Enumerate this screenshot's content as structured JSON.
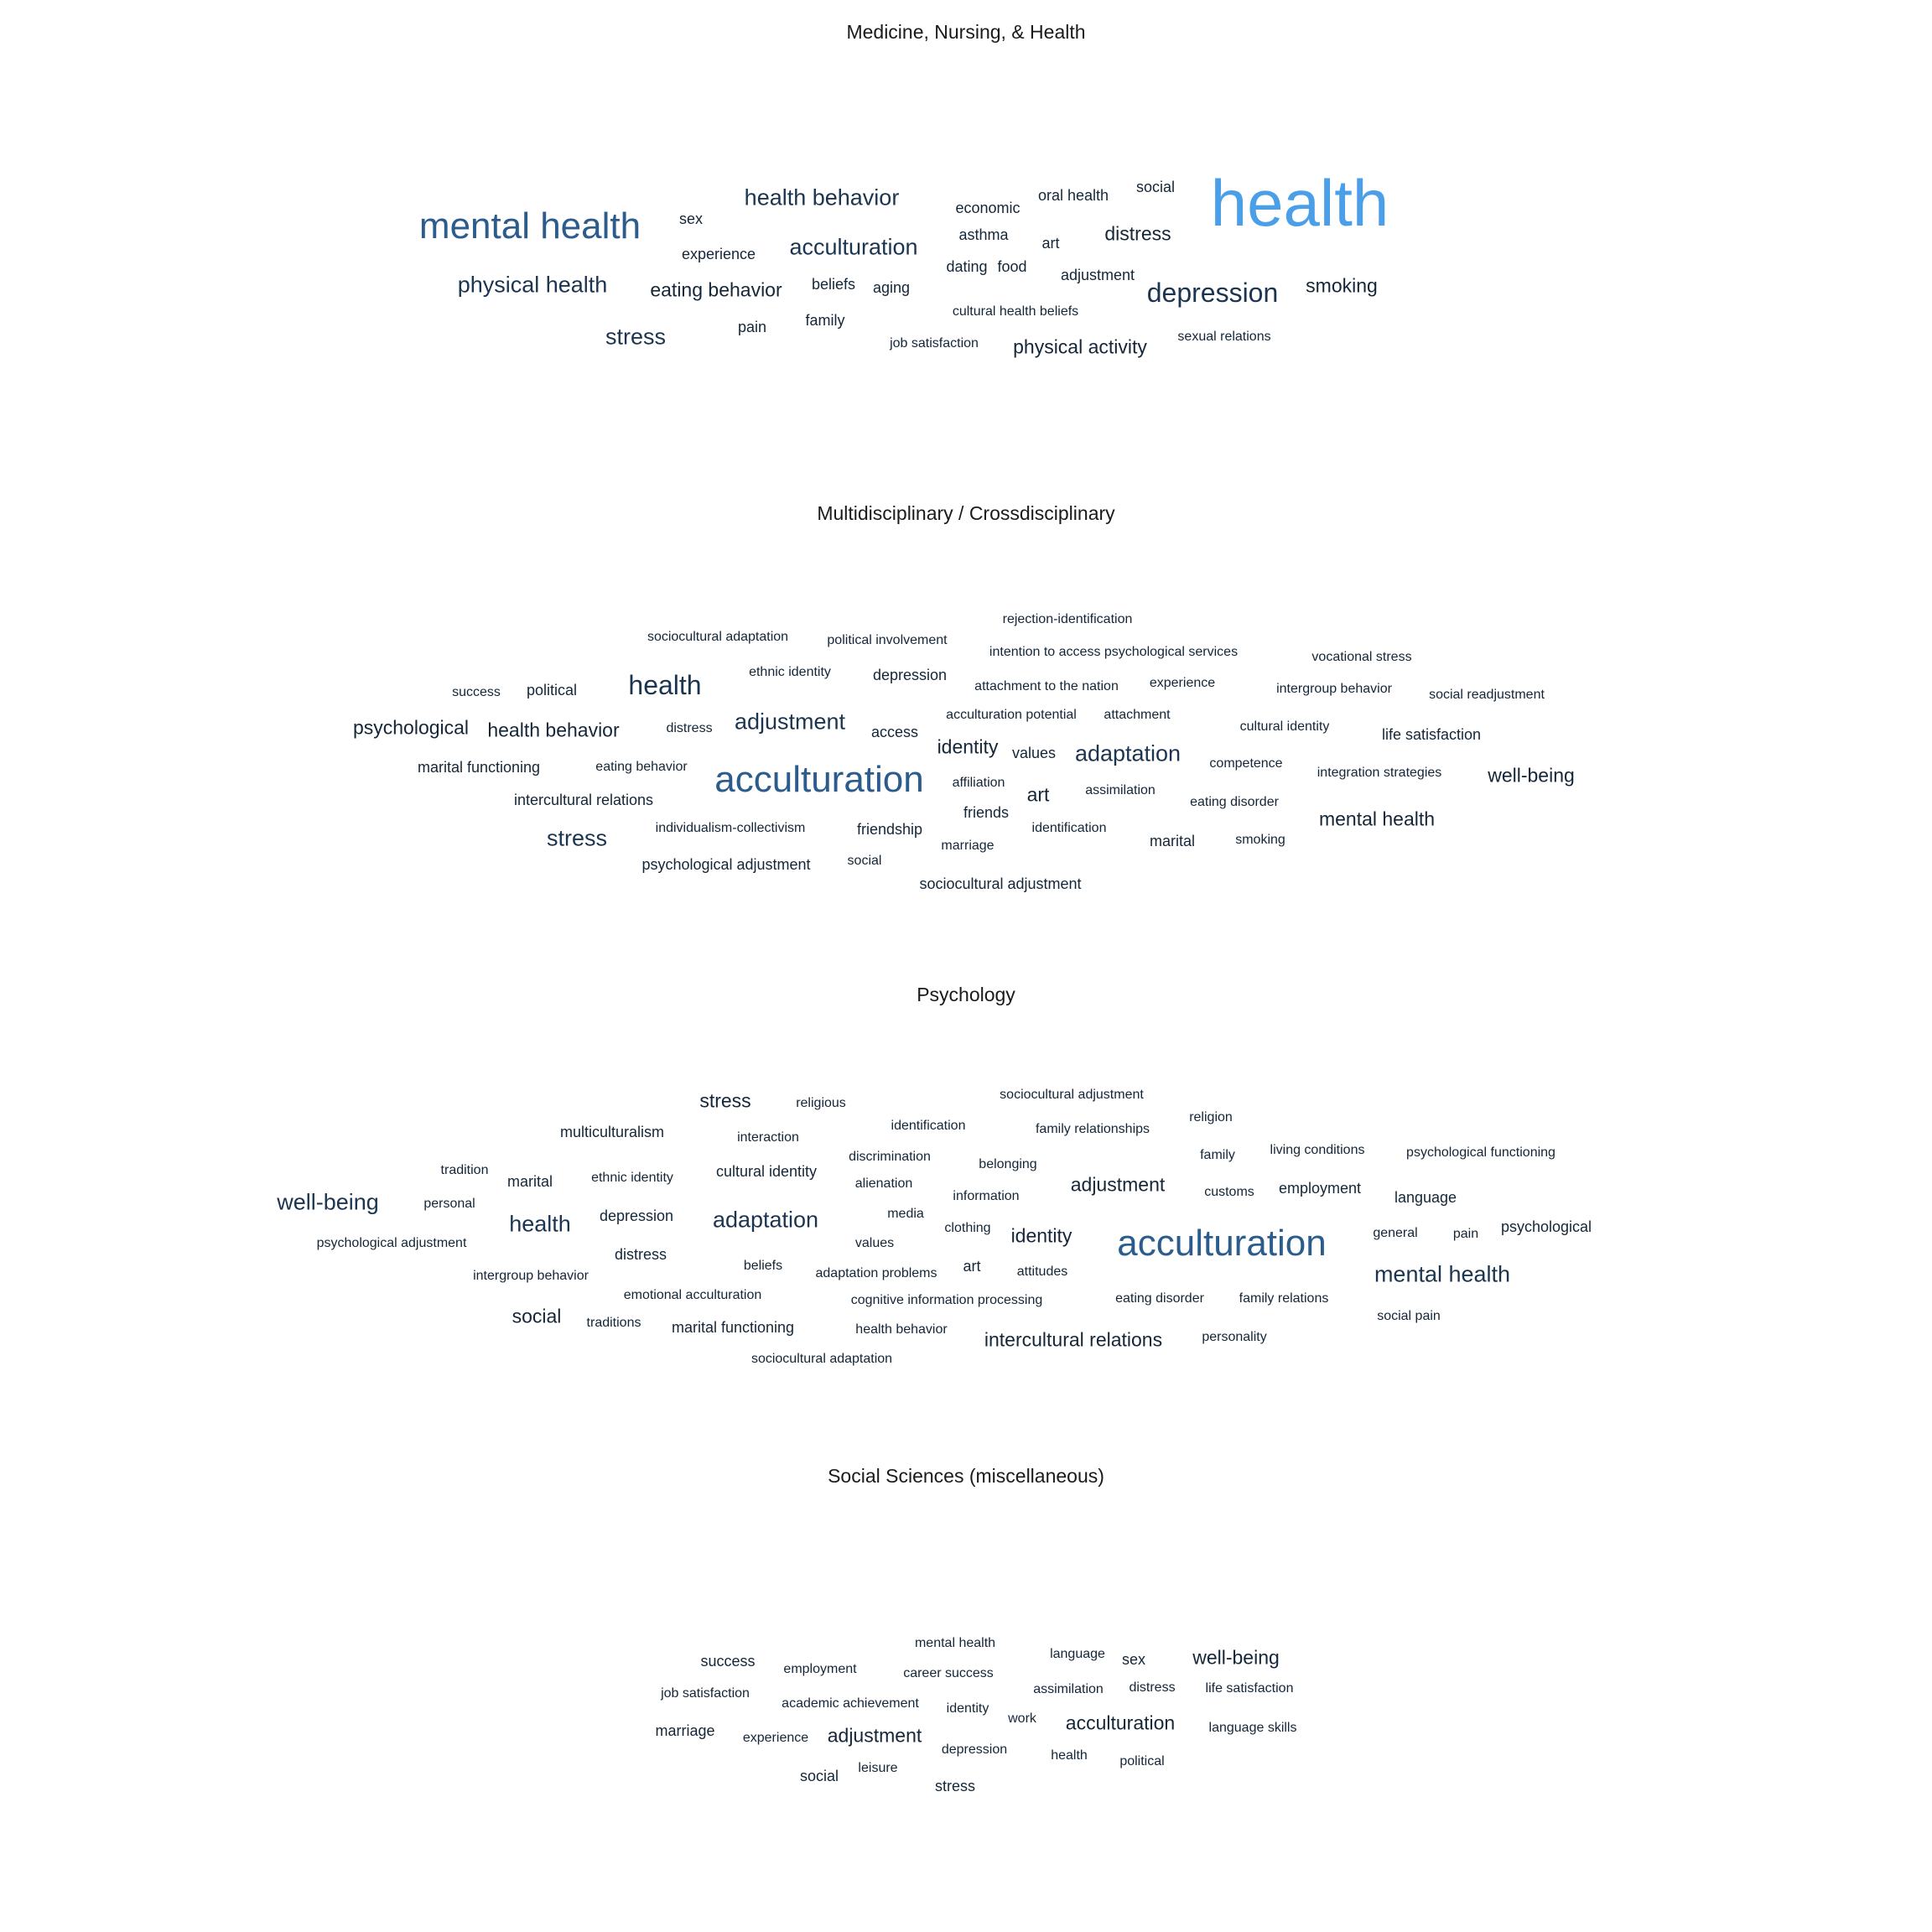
{
  "chart_data": [
    {
      "type": "wordcloud",
      "title": "Medicine, Nursing, & Health",
      "words": [
        {
          "text": "health",
          "weight": 10
        },
        {
          "text": "mental health",
          "weight": 7
        },
        {
          "text": "depression",
          "weight": 5
        },
        {
          "text": "health behavior",
          "weight": 4
        },
        {
          "text": "acculturation",
          "weight": 4
        },
        {
          "text": "physical health",
          "weight": 4
        },
        {
          "text": "stress",
          "weight": 4
        },
        {
          "text": "distress",
          "weight": 3
        },
        {
          "text": "eating behavior",
          "weight": 3
        },
        {
          "text": "smoking",
          "weight": 3
        },
        {
          "text": "physical activity",
          "weight": 3
        },
        {
          "text": "experience",
          "weight": 2
        },
        {
          "text": "sex",
          "weight": 2
        },
        {
          "text": "beliefs",
          "weight": 2
        },
        {
          "text": "aging",
          "weight": 2
        },
        {
          "text": "pain",
          "weight": 2
        },
        {
          "text": "family",
          "weight": 2
        },
        {
          "text": "art",
          "weight": 2
        },
        {
          "text": "economic",
          "weight": 2
        },
        {
          "text": "oral health",
          "weight": 2
        },
        {
          "text": "social",
          "weight": 2
        },
        {
          "text": "asthma",
          "weight": 2
        },
        {
          "text": "dating",
          "weight": 2
        },
        {
          "text": "food",
          "weight": 2
        },
        {
          "text": "adjustment",
          "weight": 2
        },
        {
          "text": "cultural health beliefs",
          "weight": 1
        },
        {
          "text": "job satisfaction",
          "weight": 1
        },
        {
          "text": "sexual relations",
          "weight": 1
        }
      ]
    },
    {
      "type": "wordcloud",
      "title": "Multidisciplinary / Crossdisciplinary",
      "words": [
        {
          "text": "acculturation",
          "weight": 7
        },
        {
          "text": "health",
          "weight": 5
        },
        {
          "text": "adjustment",
          "weight": 4
        },
        {
          "text": "adaptation",
          "weight": 4
        },
        {
          "text": "stress",
          "weight": 4
        },
        {
          "text": "mental health",
          "weight": 3
        },
        {
          "text": "psychological",
          "weight": 3
        },
        {
          "text": "health behavior",
          "weight": 3
        },
        {
          "text": "well-being",
          "weight": 3
        },
        {
          "text": "identity",
          "weight": 3
        },
        {
          "text": "art",
          "weight": 3
        },
        {
          "text": "depression",
          "weight": 2
        },
        {
          "text": "political",
          "weight": 2
        },
        {
          "text": "life satisfaction",
          "weight": 2
        },
        {
          "text": "marital",
          "weight": 2
        },
        {
          "text": "marital functioning",
          "weight": 2
        },
        {
          "text": "intercultural relations",
          "weight": 2
        },
        {
          "text": "psychological adjustment",
          "weight": 2
        },
        {
          "text": "sociocultural adjustment",
          "weight": 2
        },
        {
          "text": "friendship",
          "weight": 2
        },
        {
          "text": "access",
          "weight": 2
        },
        {
          "text": "values",
          "weight": 2
        },
        {
          "text": "friends",
          "weight": 2
        },
        {
          "text": "success",
          "weight": 1
        },
        {
          "text": "sociocultural adaptation",
          "weight": 1
        },
        {
          "text": "political involvement",
          "weight": 1
        },
        {
          "text": "rejection-identification",
          "weight": 1
        },
        {
          "text": "intention to access psychological services",
          "weight": 1
        },
        {
          "text": "vocational stress",
          "weight": 1
        },
        {
          "text": "ethnic identity",
          "weight": 1
        },
        {
          "text": "attachment to the nation",
          "weight": 1
        },
        {
          "text": "experience",
          "weight": 1
        },
        {
          "text": "intergroup behavior",
          "weight": 1
        },
        {
          "text": "social readjustment",
          "weight": 1
        },
        {
          "text": "distress",
          "weight": 1
        },
        {
          "text": "acculturation potential",
          "weight": 1
        },
        {
          "text": "attachment",
          "weight": 1
        },
        {
          "text": "cultural identity",
          "weight": 1
        },
        {
          "text": "eating behavior",
          "weight": 1
        },
        {
          "text": "competence",
          "weight": 1
        },
        {
          "text": "integration strategies",
          "weight": 1
        },
        {
          "text": "affiliation",
          "weight": 1
        },
        {
          "text": "assimilation",
          "weight": 1
        },
        {
          "text": "eating disorder",
          "weight": 1
        },
        {
          "text": "individualism-collectivism",
          "weight": 1
        },
        {
          "text": "identification",
          "weight": 1
        },
        {
          "text": "marriage",
          "weight": 1
        },
        {
          "text": "smoking",
          "weight": 1
        },
        {
          "text": "social",
          "weight": 1
        }
      ]
    },
    {
      "type": "wordcloud",
      "title": "Psychology",
      "words": [
        {
          "text": "acculturation",
          "weight": 7
        },
        {
          "text": "well-being",
          "weight": 4
        },
        {
          "text": "adaptation",
          "weight": 4
        },
        {
          "text": "health",
          "weight": 4
        },
        {
          "text": "mental health",
          "weight": 4
        },
        {
          "text": "stress",
          "weight": 3
        },
        {
          "text": "adjustment",
          "weight": 3
        },
        {
          "text": "identity",
          "weight": 3
        },
        {
          "text": "intercultural relations",
          "weight": 3
        },
        {
          "text": "social",
          "weight": 3
        },
        {
          "text": "multiculturalism",
          "weight": 2
        },
        {
          "text": "cultural identity",
          "weight": 2
        },
        {
          "text": "marital",
          "weight": 2
        },
        {
          "text": "depression",
          "weight": 2
        },
        {
          "text": "distress",
          "weight": 2
        },
        {
          "text": "marital functioning",
          "weight": 2
        },
        {
          "text": "art",
          "weight": 2
        },
        {
          "text": "employment",
          "weight": 2
        },
        {
          "text": "language",
          "weight": 2
        },
        {
          "text": "psychological",
          "weight": 2
        },
        {
          "text": "religious",
          "weight": 1
        },
        {
          "text": "sociocultural adjustment",
          "weight": 1
        },
        {
          "text": "interaction",
          "weight": 1
        },
        {
          "text": "identification",
          "weight": 1
        },
        {
          "text": "family relationships",
          "weight": 1
        },
        {
          "text": "religion",
          "weight": 1
        },
        {
          "text": "tradition",
          "weight": 1
        },
        {
          "text": "ethnic identity",
          "weight": 1
        },
        {
          "text": "discrimination",
          "weight": 1
        },
        {
          "text": "belonging",
          "weight": 1
        },
        {
          "text": "family",
          "weight": 1
        },
        {
          "text": "living conditions",
          "weight": 1
        },
        {
          "text": "psychological functioning",
          "weight": 1
        },
        {
          "text": "personal",
          "weight": 1
        },
        {
          "text": "alienation",
          "weight": 1
        },
        {
          "text": "information",
          "weight": 1
        },
        {
          "text": "customs",
          "weight": 1
        },
        {
          "text": "media",
          "weight": 1
        },
        {
          "text": "clothing",
          "weight": 1
        },
        {
          "text": "general",
          "weight": 1
        },
        {
          "text": "pain",
          "weight": 1
        },
        {
          "text": "psychological adjustment",
          "weight": 1
        },
        {
          "text": "values",
          "weight": 1
        },
        {
          "text": "beliefs",
          "weight": 1
        },
        {
          "text": "adaptation problems",
          "weight": 1
        },
        {
          "text": "attitudes",
          "weight": 1
        },
        {
          "text": "intergroup behavior",
          "weight": 1
        },
        {
          "text": "emotional acculturation",
          "weight": 1
        },
        {
          "text": "cognitive information processing",
          "weight": 1
        },
        {
          "text": "eating disorder",
          "weight": 1
        },
        {
          "text": "family relations",
          "weight": 1
        },
        {
          "text": "social pain",
          "weight": 1
        },
        {
          "text": "traditions",
          "weight": 1
        },
        {
          "text": "health behavior",
          "weight": 1
        },
        {
          "text": "personality",
          "weight": 1
        },
        {
          "text": "sociocultural adaptation",
          "weight": 1
        }
      ]
    },
    {
      "type": "wordcloud",
      "title": "Social Sciences (miscellaneous)",
      "words": [
        {
          "text": "acculturation",
          "weight": 3
        },
        {
          "text": "adjustment",
          "weight": 3
        },
        {
          "text": "well-being",
          "weight": 3
        },
        {
          "text": "marriage",
          "weight": 2
        },
        {
          "text": "social",
          "weight": 2
        },
        {
          "text": "stress",
          "weight": 2
        },
        {
          "text": "success",
          "weight": 2
        },
        {
          "text": "sex",
          "weight": 2
        },
        {
          "text": "mental health",
          "weight": 1
        },
        {
          "text": "language",
          "weight": 1
        },
        {
          "text": "employment",
          "weight": 1
        },
        {
          "text": "career success",
          "weight": 1
        },
        {
          "text": "job satisfaction",
          "weight": 1
        },
        {
          "text": "assimilation",
          "weight": 1
        },
        {
          "text": "distress",
          "weight": 1
        },
        {
          "text": "life satisfaction",
          "weight": 1
        },
        {
          "text": "academic achievement",
          "weight": 1
        },
        {
          "text": "identity",
          "weight": 1
        },
        {
          "text": "work",
          "weight": 1
        },
        {
          "text": "experience",
          "weight": 1
        },
        {
          "text": "language skills",
          "weight": 1
        },
        {
          "text": "depression",
          "weight": 1
        },
        {
          "text": "health",
          "weight": 1
        },
        {
          "text": "political",
          "weight": 1
        },
        {
          "text": "leisure",
          "weight": 1
        }
      ]
    }
  ]
}
